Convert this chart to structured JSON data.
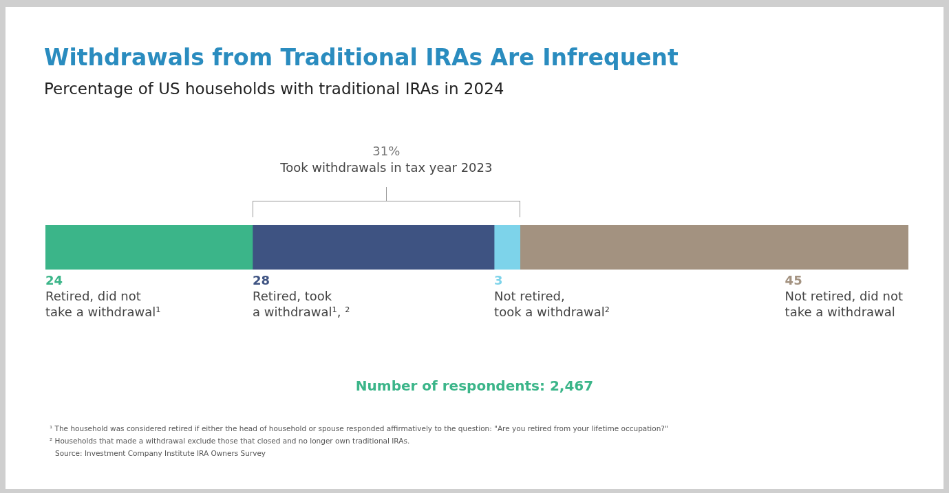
{
  "chart_data": {
    "type": "bar",
    "orientation": "horizontal",
    "stacked": true,
    "title": "Withdrawals from Traditional IRAs Are Infrequent",
    "subtitle": "Percentage of US households with traditional IRAs in 2024",
    "categories": [
      null
    ],
    "tick_labels": false,
    "legend": false,
    "data_labels": true,
    "series": [
      {
        "name": "Retired, did not\ntake a withdrawal¹",
        "color": "#3bb589",
        "values": [
          24
        ]
      },
      {
        "name": "Retired, took\na withdrawal¹, ²",
        "color": "#3e5382",
        "values": [
          28
        ]
      },
      {
        "name": "Not retired,\ntook a withdrawal²",
        "color": "#7dd3ea",
        "values": [
          3
        ]
      },
      {
        "name": "Not retired, did not\ntake a withdrawal",
        "color": "#a39280",
        "values": [
          45
        ]
      }
    ],
    "annotations": [
      "31%",
      "Took withdrawals in tax year 2023",
      "Number of respondents: 2,467",
      "¹ The household was considered retired if either the head of household or spouse responded affirmatively to the question: \"Are you retired from your lifetime occupation?\"",
      "² Households that made a withdrawal exclude those that closed and no longer own traditional IRAs.",
      "Source: Investment Company Institute IRA Owners Survey"
    ]
  }
}
